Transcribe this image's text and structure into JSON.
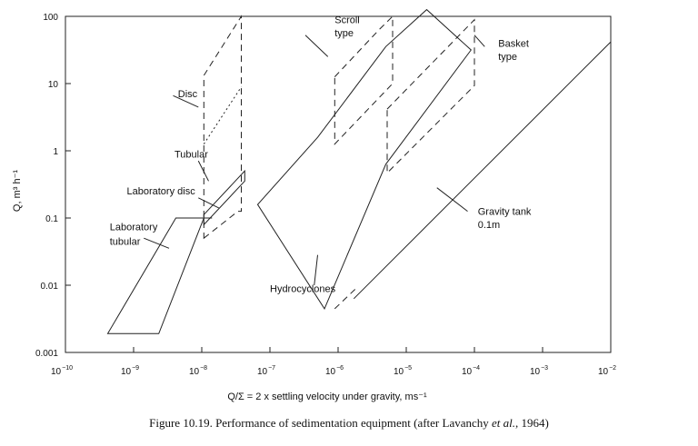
{
  "chart_data": {
    "type": "line",
    "title": "",
    "xlabel": "Q/Σ = 2 x settling velocity under gravity, ms⁻¹",
    "ylabel": "Q, m³ h⁻¹",
    "x_scale": "log",
    "y_scale": "log",
    "xlim_exp": [
      -10,
      -2
    ],
    "ylim_exp": [
      -3,
      2
    ],
    "x_ticks": [
      {
        "exp": -10,
        "base": "10",
        "sup": "−10"
      },
      {
        "exp": -9,
        "base": "10",
        "sup": "−9"
      },
      {
        "exp": -8,
        "base": "10",
        "sup": "−8"
      },
      {
        "exp": -7,
        "base": "10",
        "sup": "−7"
      },
      {
        "exp": -6,
        "base": "10",
        "sup": "−6"
      },
      {
        "exp": -5,
        "base": "10",
        "sup": "−5"
      },
      {
        "exp": -4,
        "base": "10",
        "sup": "−4"
      },
      {
        "exp": -3,
        "base": "10",
        "sup": "−3"
      },
      {
        "exp": -2,
        "base": "10",
        "sup": "−2"
      }
    ],
    "y_ticks": [
      {
        "exp": -3,
        "label": "0.001"
      },
      {
        "exp": -2,
        "label": "0.01"
      },
      {
        "exp": -1,
        "label": "0.1"
      },
      {
        "exp": 0,
        "label": "1"
      },
      {
        "exp": 1,
        "label": "10"
      },
      {
        "exp": 2,
        "label": "100"
      }
    ],
    "series": [
      {
        "name": "Laboratory tubular",
        "style": "solid",
        "closed": true,
        "points_log": [
          [
            -9.38,
            -2.72
          ],
          [
            -8.63,
            -2.72
          ],
          [
            -7.97,
            -1.0
          ],
          [
            -8.38,
            -1.0
          ]
        ]
      },
      {
        "name": "Laboratory disc",
        "style": "solid",
        "closed": false,
        "points_log": [
          [
            -8.38,
            -1.0
          ],
          [
            -7.97,
            -1.0
          ],
          [
            -7.85,
            -1.0
          ]
        ]
      },
      {
        "name": "Tubular",
        "style": "solid",
        "closed": true,
        "points_log": [
          [
            -7.97,
            -0.95
          ],
          [
            -7.37,
            -0.3
          ],
          [
            -7.37,
            -0.45
          ],
          [
            -7.97,
            -1.1
          ]
        ]
      },
      {
        "name": "Disc",
        "style": "dashed",
        "closed": true,
        "points_log": [
          [
            -7.97,
            -1.3
          ],
          [
            -7.47,
            -0.9
          ],
          [
            -7.42,
            -0.9
          ],
          [
            -7.42,
            2.0
          ],
          [
            -7.97,
            1.12
          ]
        ]
      },
      {
        "name": "Disc (inner)",
        "style": "dotted",
        "closed": false,
        "points_log": [
          [
            -7.97,
            0.1
          ],
          [
            -7.42,
            0.95
          ]
        ]
      },
      {
        "name": "Hydrocyclones",
        "style": "solid",
        "closed": true,
        "points_log": [
          [
            -7.18,
            -0.8
          ],
          [
            -6.2,
            -2.35
          ],
          [
            -5.3,
            -0.2
          ],
          [
            -4.05,
            1.5
          ],
          [
            -4.7,
            2.1
          ],
          [
            -5.3,
            1.55
          ],
          [
            -6.3,
            0.2
          ]
        ]
      },
      {
        "name": "Scroll type",
        "style": "dashed",
        "closed": true,
        "points_log": [
          [
            -6.05,
            1.1
          ],
          [
            -5.4,
            1.8
          ],
          [
            -5.2,
            2.0
          ],
          [
            -5.2,
            1.0
          ],
          [
            -6.05,
            0.1
          ]
        ]
      },
      {
        "name": "Basket type",
        "style": "dashed",
        "closed": true,
        "points_log": [
          [
            -5.28,
            0.62
          ],
          [
            -4.0,
            1.95
          ],
          [
            -4.0,
            0.97
          ],
          [
            -5.28,
            -0.33
          ]
        ]
      },
      {
        "name": "Gravity tank 0.1m",
        "style": "solid",
        "closed": false,
        "points_log": [
          [
            -5.77,
            -2.2
          ],
          [
            -2.0,
            1.62
          ]
        ]
      },
      {
        "name": "Gravity tank 0.1m (ext)",
        "style": "dashed",
        "closed": false,
        "points_log": [
          [
            -6.05,
            -2.35
          ],
          [
            -5.74,
            -2.05
          ]
        ]
      }
    ],
    "annotations": [
      {
        "id": "scroll_l1",
        "text": "Scroll",
        "anchor_log": [
          -6.05,
          1.9
        ]
      },
      {
        "id": "scroll_l2",
        "text": "type",
        "anchor_log": [
          -6.05,
          1.7
        ]
      },
      {
        "id": "basket_l1",
        "text": "Basket",
        "anchor_log": [
          -3.65,
          1.55
        ]
      },
      {
        "id": "basket_l2",
        "text": "type",
        "anchor_log": [
          -3.65,
          1.35
        ]
      },
      {
        "id": "disc",
        "text": "Disc",
        "anchor_log": [
          -8.35,
          0.8
        ]
      },
      {
        "id": "tubular",
        "text": "Tubular",
        "anchor_log": [
          -8.4,
          -0.1
        ]
      },
      {
        "id": "lab_disc",
        "text": "Laboratory disc",
        "anchor_log": [
          -9.1,
          -0.65
        ]
      },
      {
        "id": "lab_tub_l1",
        "text": "Laboratory",
        "anchor_log": [
          -9.35,
          -1.18
        ]
      },
      {
        "id": "lab_tub_l2",
        "text": "tubular",
        "anchor_log": [
          -9.35,
          -1.4
        ]
      },
      {
        "id": "gravity_l1",
        "text": "Gravity tank",
        "anchor_log": [
          -3.95,
          -0.95
        ]
      },
      {
        "id": "gravity_l2",
        "text": "0.1m",
        "anchor_log": [
          -3.95,
          -1.15
        ]
      },
      {
        "id": "hydro",
        "text": "Hydrocyclones",
        "anchor_log": [
          -7.0,
          -2.1
        ]
      }
    ],
    "leaders": [
      {
        "from_log": [
          -8.42,
          0.82
        ],
        "to_log": [
          -8.05,
          0.65
        ]
      },
      {
        "from_log": [
          -8.05,
          -0.15
        ],
        "to_log": [
          -7.9,
          -0.45
        ]
      },
      {
        "from_log": [
          -8.05,
          -0.7
        ],
        "to_log": [
          -7.75,
          -0.85
        ]
      },
      {
        "from_log": [
          -8.85,
          -1.3
        ],
        "to_log": [
          -8.48,
          -1.45
        ]
      },
      {
        "from_log": [
          -6.48,
          1.72
        ],
        "to_log": [
          -6.15,
          1.4
        ]
      },
      {
        "from_log": [
          -4.0,
          1.72
        ],
        "to_log": [
          -3.85,
          1.55
        ]
      },
      {
        "from_log": [
          -4.55,
          -0.55
        ],
        "to_log": [
          -4.1,
          -0.9
        ]
      },
      {
        "from_log": [
          -6.3,
          -1.55
        ],
        "to_log": [
          -6.35,
          -2.0
        ]
      }
    ]
  },
  "caption": {
    "prefix": "Figure 10.19.   Performance of sedimentation equipment (after Lavanchy ",
    "italic": "et al.",
    "suffix": ", 1964)"
  }
}
